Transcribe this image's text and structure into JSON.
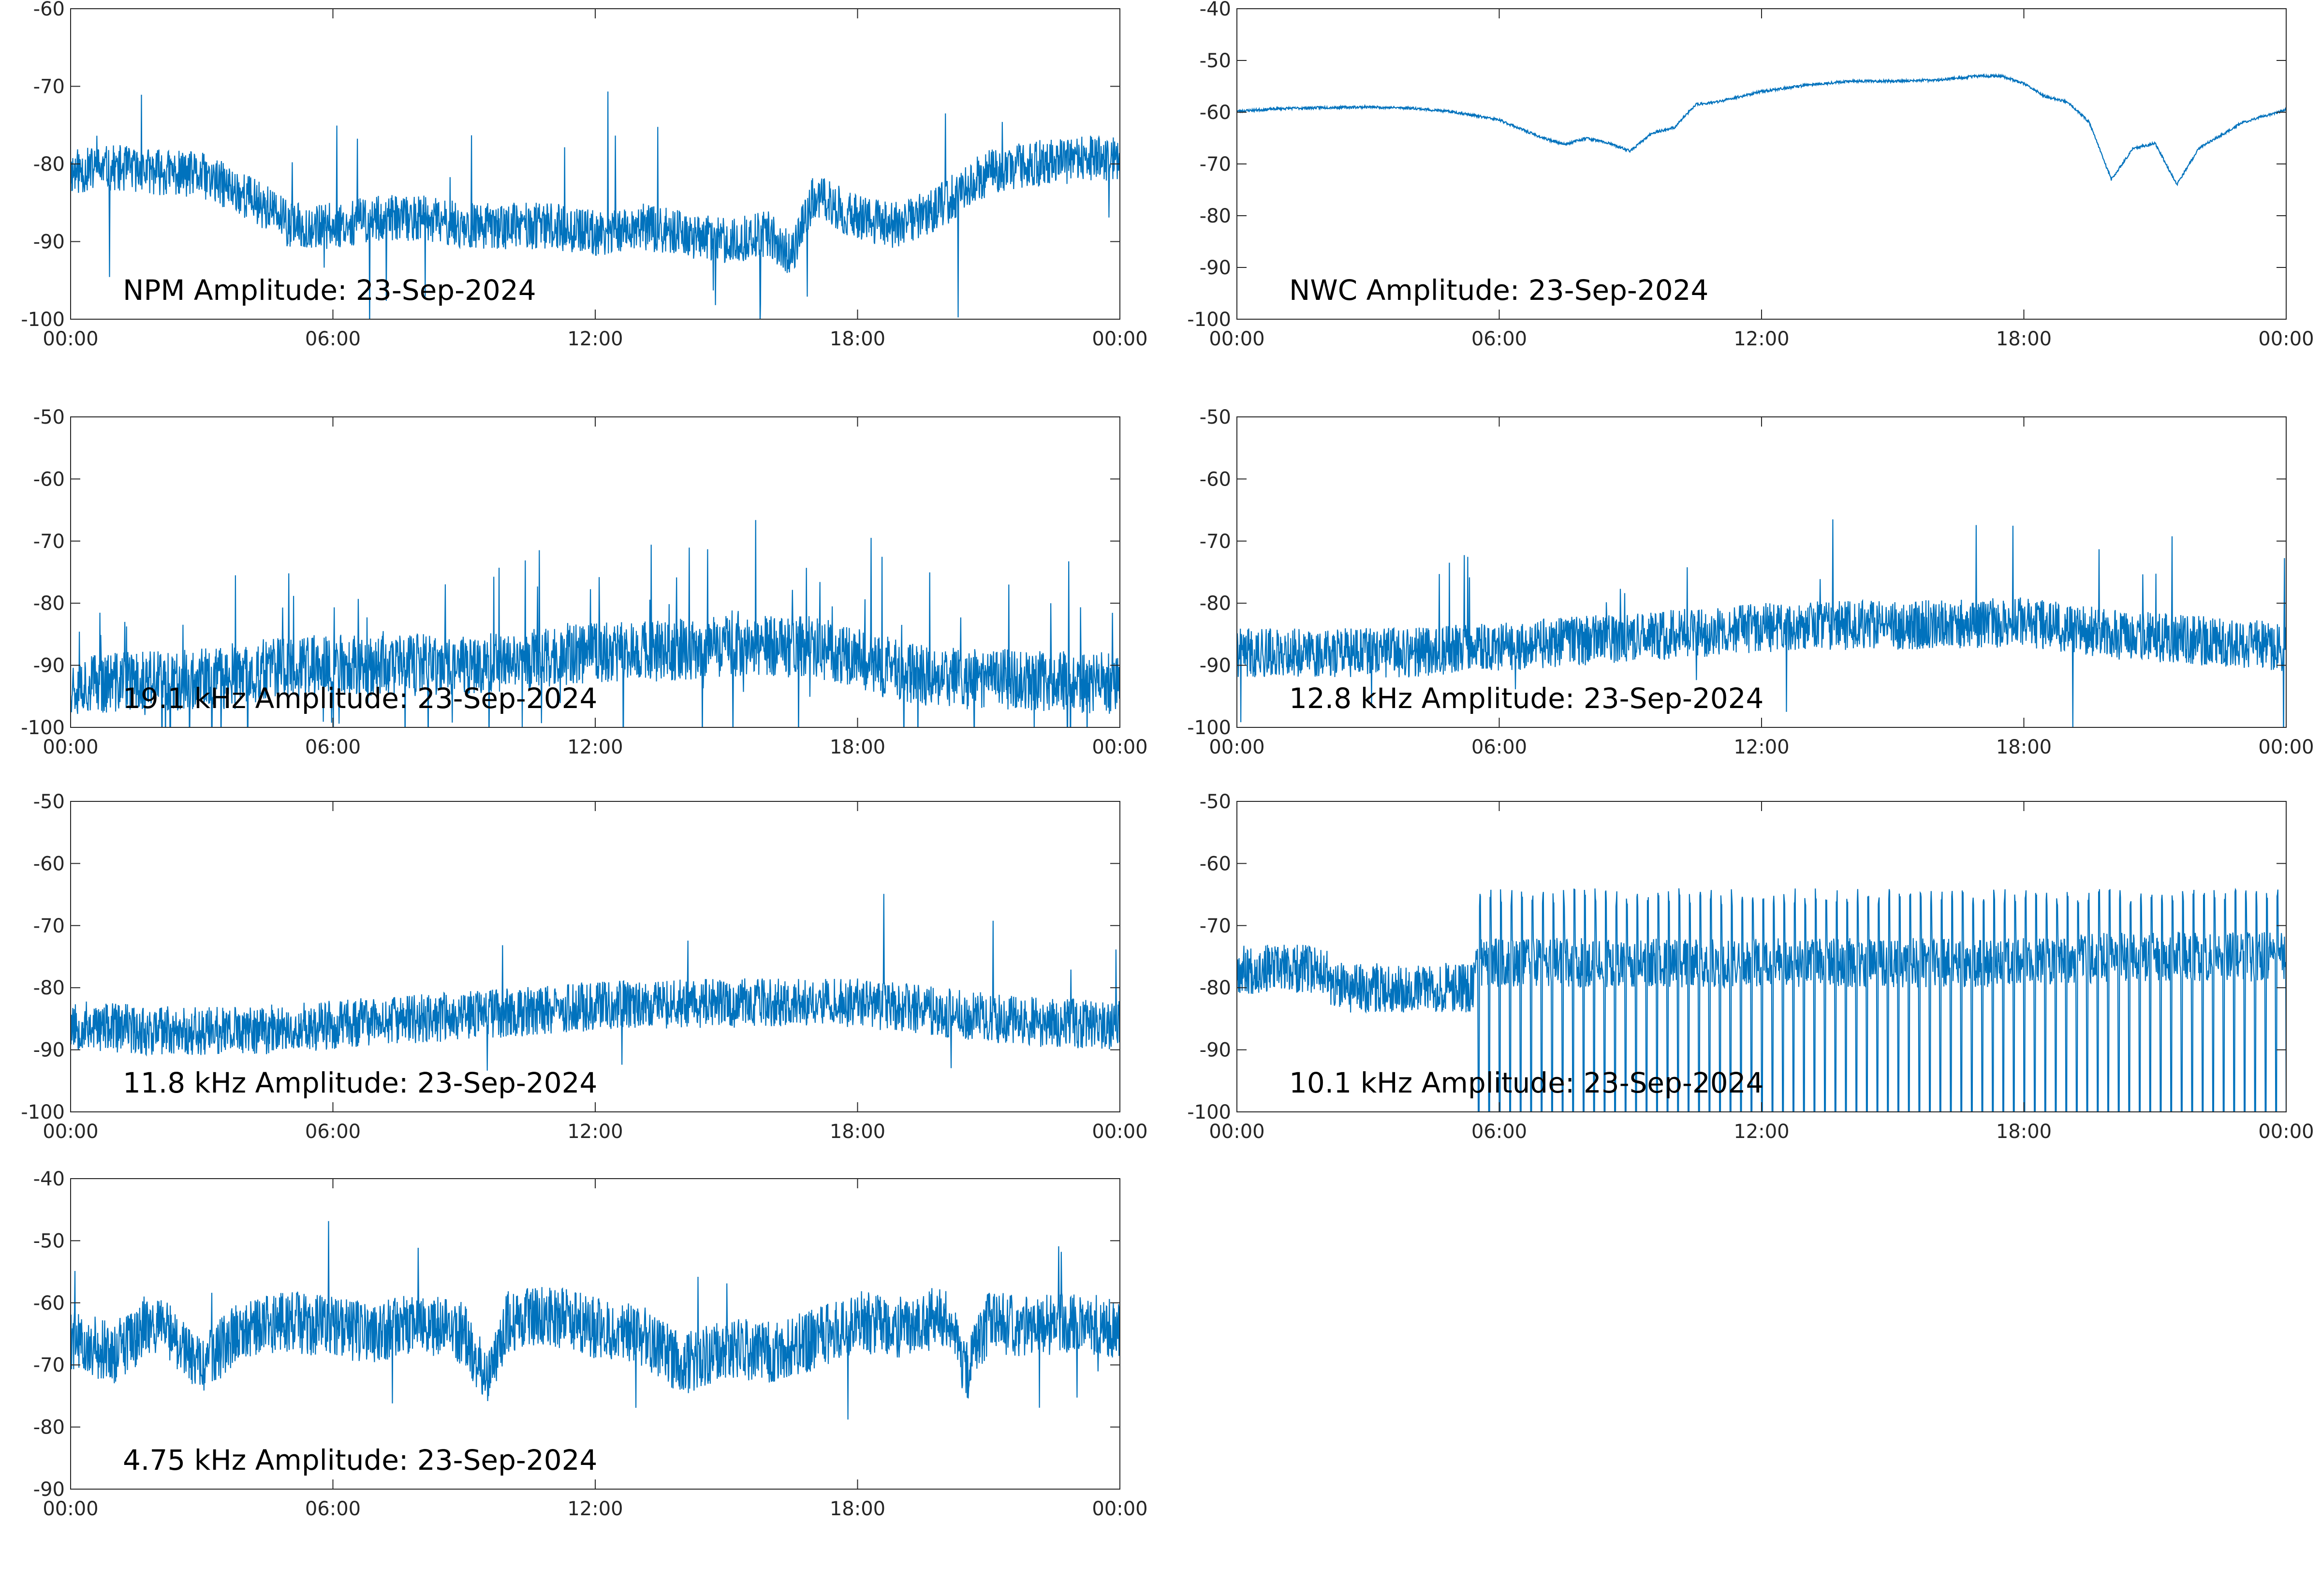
{
  "figure": {
    "background": "#ffffff"
  },
  "chart_data": [
    {
      "type": "line",
      "title": "NPM Amplitude: 23-Sep-2024",
      "xticks": [
        "00:00",
        "06:00",
        "12:00",
        "18:00",
        "00:00"
      ],
      "xlim_hours": [
        0,
        24
      ],
      "ylim": [
        -100,
        -60
      ],
      "yticks": [
        -100,
        -90,
        -80,
        -70,
        -60
      ],
      "grid": false,
      "color": "#0072BD",
      "series": [
        {
          "x_hours": [
            0,
            1,
            2,
            3,
            4,
            4.6,
            5,
            6,
            7,
            8,
            9,
            10,
            11,
            12,
            13,
            14,
            15,
            16,
            16.5,
            17,
            18,
            19,
            20,
            21,
            22,
            23,
            24
          ],
          "values": [
            -81,
            -80.5,
            -81,
            -81.5,
            -84,
            -86,
            -88,
            -88,
            -87,
            -87,
            -88,
            -88,
            -88,
            -89,
            -88,
            -89,
            -90,
            -89,
            -92,
            -84,
            -87,
            -88,
            -85,
            -81,
            -80,
            -79.5,
            -79
          ]
        }
      ]
    },
    {
      "type": "line",
      "title": "NWC Amplitude: 23-Sep-2024",
      "xticks": [
        "00:00",
        "06:00",
        "12:00",
        "18:00",
        "00:00"
      ],
      "xlim_hours": [
        0,
        24
      ],
      "ylim": [
        -100,
        -40
      ],
      "yticks": [
        -100,
        -90,
        -80,
        -70,
        -60,
        -50,
        -40
      ],
      "grid": false,
      "color": "#0072BD",
      "series": [
        {
          "x_hours": [
            0,
            1,
            2,
            3,
            4,
            5,
            6,
            7,
            7.5,
            8,
            8.5,
            9,
            9.5,
            10,
            10.5,
            11,
            12,
            13,
            14,
            15,
            16,
            17,
            17.5,
            18,
            18.5,
            19,
            19.5,
            20,
            20.5,
            21,
            21.5,
            22,
            23,
            24
          ],
          "values": [
            -59.8,
            -59.3,
            -59.1,
            -59,
            -59.2,
            -60,
            -61.5,
            -65,
            -66.2,
            -65,
            -66,
            -67.5,
            -64,
            -63,
            -58.5,
            -58,
            -56,
            -54.8,
            -54,
            -54,
            -53.8,
            -53,
            -53,
            -54.5,
            -57,
            -58,
            -62,
            -73,
            -67,
            -66,
            -74,
            -67,
            -62,
            -59.5
          ]
        }
      ]
    },
    {
      "type": "line",
      "title": "19.1 kHz Amplitude: 23-Sep-2024",
      "xticks": [
        "00:00",
        "06:00",
        "12:00",
        "18:00",
        "00:00"
      ],
      "xlim_hours": [
        0,
        24
      ],
      "ylim": [
        -100,
        -50
      ],
      "yticks": [
        -100,
        -90,
        -80,
        -70,
        -60,
        -50
      ],
      "grid": false,
      "color": "#0072BD",
      "series": [
        {
          "x_hours": [
            0,
            2,
            4,
            4.5,
            6,
            8,
            10,
            12,
            14,
            15,
            16,
            17,
            18,
            19,
            20,
            22,
            24
          ],
          "values": [
            -93,
            -92.5,
            -92,
            -90.5,
            -90,
            -90,
            -89.5,
            -88,
            -87.5,
            -87,
            -87,
            -87,
            -89,
            -91,
            -92,
            -92.5,
            -93
          ]
        }
      ]
    },
    {
      "type": "line",
      "title": "12.8 kHz Amplitude: 23-Sep-2024",
      "xticks": [
        "00:00",
        "06:00",
        "12:00",
        "18:00",
        "00:00"
      ],
      "xlim_hours": [
        0,
        24
      ],
      "ylim": [
        -100,
        -50
      ],
      "yticks": [
        -100,
        -90,
        -80,
        -70,
        -60,
        -50
      ],
      "grid": false,
      "color": "#0072BD",
      "series": [
        {
          "x_hours": [
            0,
            2,
            4,
            6,
            8,
            10,
            12,
            14,
            16,
            18,
            20,
            22,
            24
          ],
          "values": [
            -88,
            -88,
            -88,
            -87,
            -86,
            -85,
            -84,
            -83.5,
            -83.5,
            -83,
            -85,
            -86,
            -87
          ]
        }
      ]
    },
    {
      "type": "line",
      "title": "11.8 kHz Amplitude: 23-Sep-2024",
      "xticks": [
        "00:00",
        "06:00",
        "12:00",
        "18:00",
        "00:00"
      ],
      "xlim_hours": [
        0,
        24
      ],
      "ylim": [
        -100,
        -50
      ],
      "yticks": [
        -100,
        -90,
        -80,
        -70,
        -60,
        -50
      ],
      "grid": false,
      "color": "#0072BD",
      "series": [
        {
          "x_hours": [
            0,
            2,
            4,
            6,
            8,
            10,
            12,
            14,
            16,
            18,
            20,
            22,
            24
          ],
          "values": [
            -86,
            -87,
            -87,
            -86,
            -85,
            -84,
            -83,
            -82.5,
            -82.5,
            -82.5,
            -84,
            -85.5,
            -86
          ]
        }
      ]
    },
    {
      "type": "line",
      "title": "10.1 kHz Amplitude: 23-Sep-2024",
      "xticks": [
        "00:00",
        "06:00",
        "12:00",
        "18:00",
        "00:00"
      ],
      "xlim_hours": [
        0,
        24
      ],
      "ylim": [
        -100,
        -50
      ],
      "yticks": [
        -100,
        -90,
        -80,
        -70,
        -60,
        -50
      ],
      "grid": false,
      "color": "#0072BD",
      "series": [
        {
          "x_hours": [
            0,
            2,
            2.2,
            5.4,
            5.5,
            10,
            14,
            18,
            20,
            24
          ],
          "values": [
            -77,
            -77,
            -80,
            -80,
            -76,
            -76,
            -76,
            -76,
            -75,
            -75
          ]
        }
      ]
    },
    {
      "type": "line",
      "title": "4.75 kHz Amplitude: 23-Sep-2024",
      "xticks": [
        "00:00",
        "06:00",
        "12:00",
        "18:00",
        "00:00"
      ],
      "xlim_hours": [
        0,
        24
      ],
      "ylim": [
        -90,
        -40
      ],
      "yticks": [
        -90,
        -80,
        -70,
        -60,
        -50,
        -40
      ],
      "grid": false,
      "color": "#0072BD",
      "series": [
        {
          "x_hours": [
            0,
            1,
            2,
            3,
            4,
            5,
            6,
            7,
            8,
            9,
            9.5,
            10,
            11,
            12,
            13,
            14,
            15,
            16,
            17,
            18,
            19,
            20,
            20.5,
            21,
            22,
            23,
            24
          ],
          "values": [
            -66,
            -68,
            -63,
            -70,
            -64,
            -63,
            -64,
            -65,
            -63,
            -65,
            -72,
            -63,
            -62,
            -64,
            -65,
            -70,
            -67,
            -68,
            -66,
            -63,
            -64,
            -62,
            -71,
            -63,
            -64,
            -63,
            -64
          ]
        }
      ]
    }
  ]
}
